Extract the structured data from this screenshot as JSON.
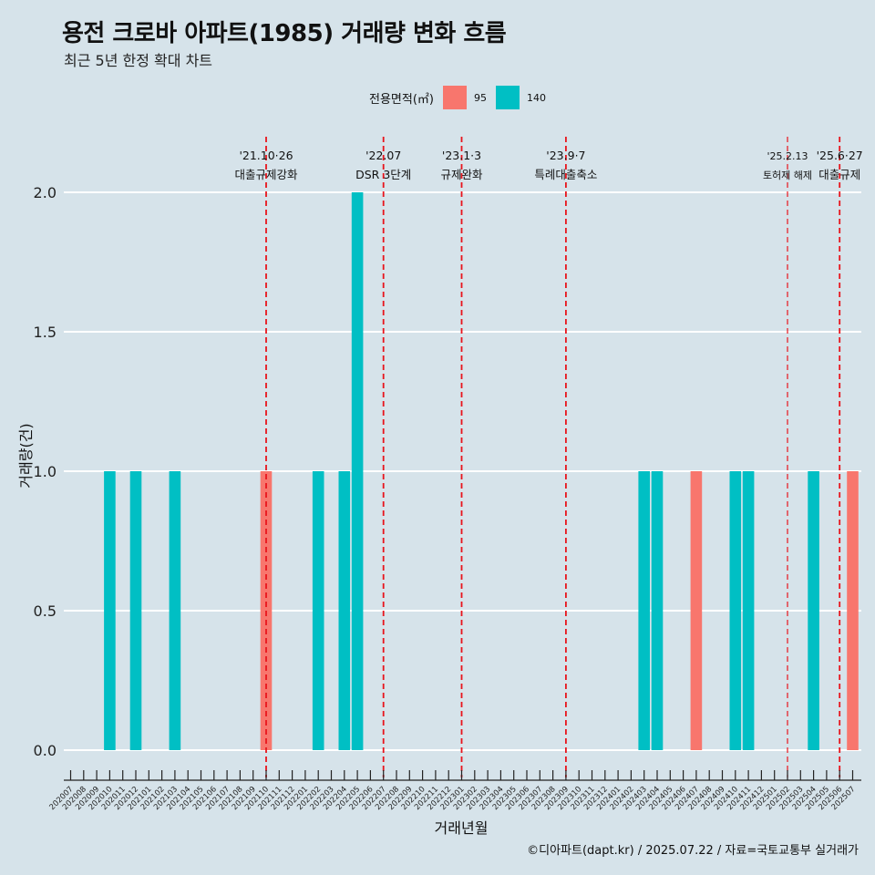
{
  "header": {
    "title": "용전 크로바 아파트(1985) 거래량 변화 흐름",
    "subtitle": "최근 5년 한정 확대 차트"
  },
  "legend": {
    "title": "전용면적(㎡)",
    "items": [
      {
        "label": "95",
        "color": "#f8766d"
      },
      {
        "label": "140",
        "color": "#00bfc4"
      }
    ]
  },
  "caption": "©디아파트(dapt.kr) / 2025.07.22 / 자료=국토교통부 실거래가",
  "chart_data": {
    "type": "bar",
    "xlabel": "거래년월",
    "ylabel": "거래량(건)",
    "ylim": [
      0,
      2
    ],
    "yticks": [
      "0.0",
      "0.5",
      "1.0",
      "1.5",
      "2.0"
    ],
    "grid": true,
    "categories": [
      "202007",
      "202008",
      "202009",
      "202010",
      "202011",
      "202012",
      "202101",
      "202102",
      "202103",
      "202104",
      "202105",
      "202106",
      "202107",
      "202108",
      "202109",
      "202110",
      "202111",
      "202112",
      "202201",
      "202202",
      "202203",
      "202204",
      "202205",
      "202206",
      "202207",
      "202208",
      "202209",
      "202210",
      "202211",
      "202212",
      "202301",
      "202302",
      "202303",
      "202304",
      "202305",
      "202306",
      "202307",
      "202308",
      "202309",
      "202310",
      "202311",
      "202312",
      "202401",
      "202402",
      "202403",
      "202404",
      "202405",
      "202406",
      "202407",
      "202408",
      "202409",
      "202410",
      "202411",
      "202412",
      "202501",
      "202502",
      "202503",
      "202504",
      "202505",
      "202506",
      "202507"
    ],
    "bars": [
      {
        "month": "202010",
        "area": "140",
        "value": 1
      },
      {
        "month": "202012",
        "area": "140",
        "value": 1
      },
      {
        "month": "202103",
        "area": "140",
        "value": 1
      },
      {
        "month": "202110",
        "area": "95",
        "value": 1
      },
      {
        "month": "202202",
        "area": "140",
        "value": 1
      },
      {
        "month": "202204",
        "area": "140",
        "value": 1
      },
      {
        "month": "202205",
        "area": "140",
        "value": 2
      },
      {
        "month": "202403",
        "area": "140",
        "value": 1
      },
      {
        "month": "202404",
        "area": "140",
        "value": 1
      },
      {
        "month": "202407",
        "area": "95",
        "value": 1
      },
      {
        "month": "202410",
        "area": "140",
        "value": 1
      },
      {
        "month": "202411",
        "area": "140",
        "value": 1
      },
      {
        "month": "202504",
        "area": "140",
        "value": 1
      },
      {
        "month": "202507",
        "area": "95",
        "value": 1
      }
    ],
    "events": [
      {
        "month": "202110",
        "date": "'21.10·26",
        "label": "대출규제강화",
        "small": false
      },
      {
        "month": "202207",
        "date": "'22.07",
        "label": "DSR 3단계",
        "small": false
      },
      {
        "month": "202301",
        "date": "'23.1·3",
        "label": "규제완화",
        "small": false
      },
      {
        "month": "202309",
        "date": "'23.9·7",
        "label": "특례대출축소",
        "small": false
      },
      {
        "month": "202502",
        "date": "'25.2.13",
        "label": "토허제 해제",
        "small": true
      },
      {
        "month": "202506",
        "date": "'25.6·27",
        "label": "대출규제",
        "small": false
      }
    ]
  }
}
